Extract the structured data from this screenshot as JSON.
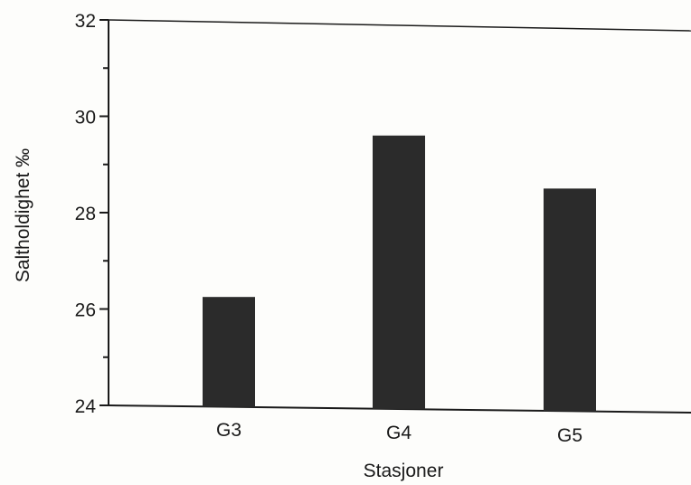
{
  "chart_data": {
    "type": "bar",
    "categories": [
      "G3",
      "G4",
      "G5"
    ],
    "values": [
      26.25,
      29.6,
      28.5
    ],
    "xlabel": "Stasjoner",
    "ylabel": "Saltholdighet ‰",
    "ylim": [
      24,
      32
    ],
    "yticks_major": [
      24,
      26,
      28,
      30,
      32
    ],
    "yticks_minor": [
      25,
      27,
      29,
      31
    ],
    "grid": false,
    "colors": {
      "bar": "#2b2b2b",
      "axis": "#1a1a1a",
      "background": "#fdfdfb"
    }
  }
}
